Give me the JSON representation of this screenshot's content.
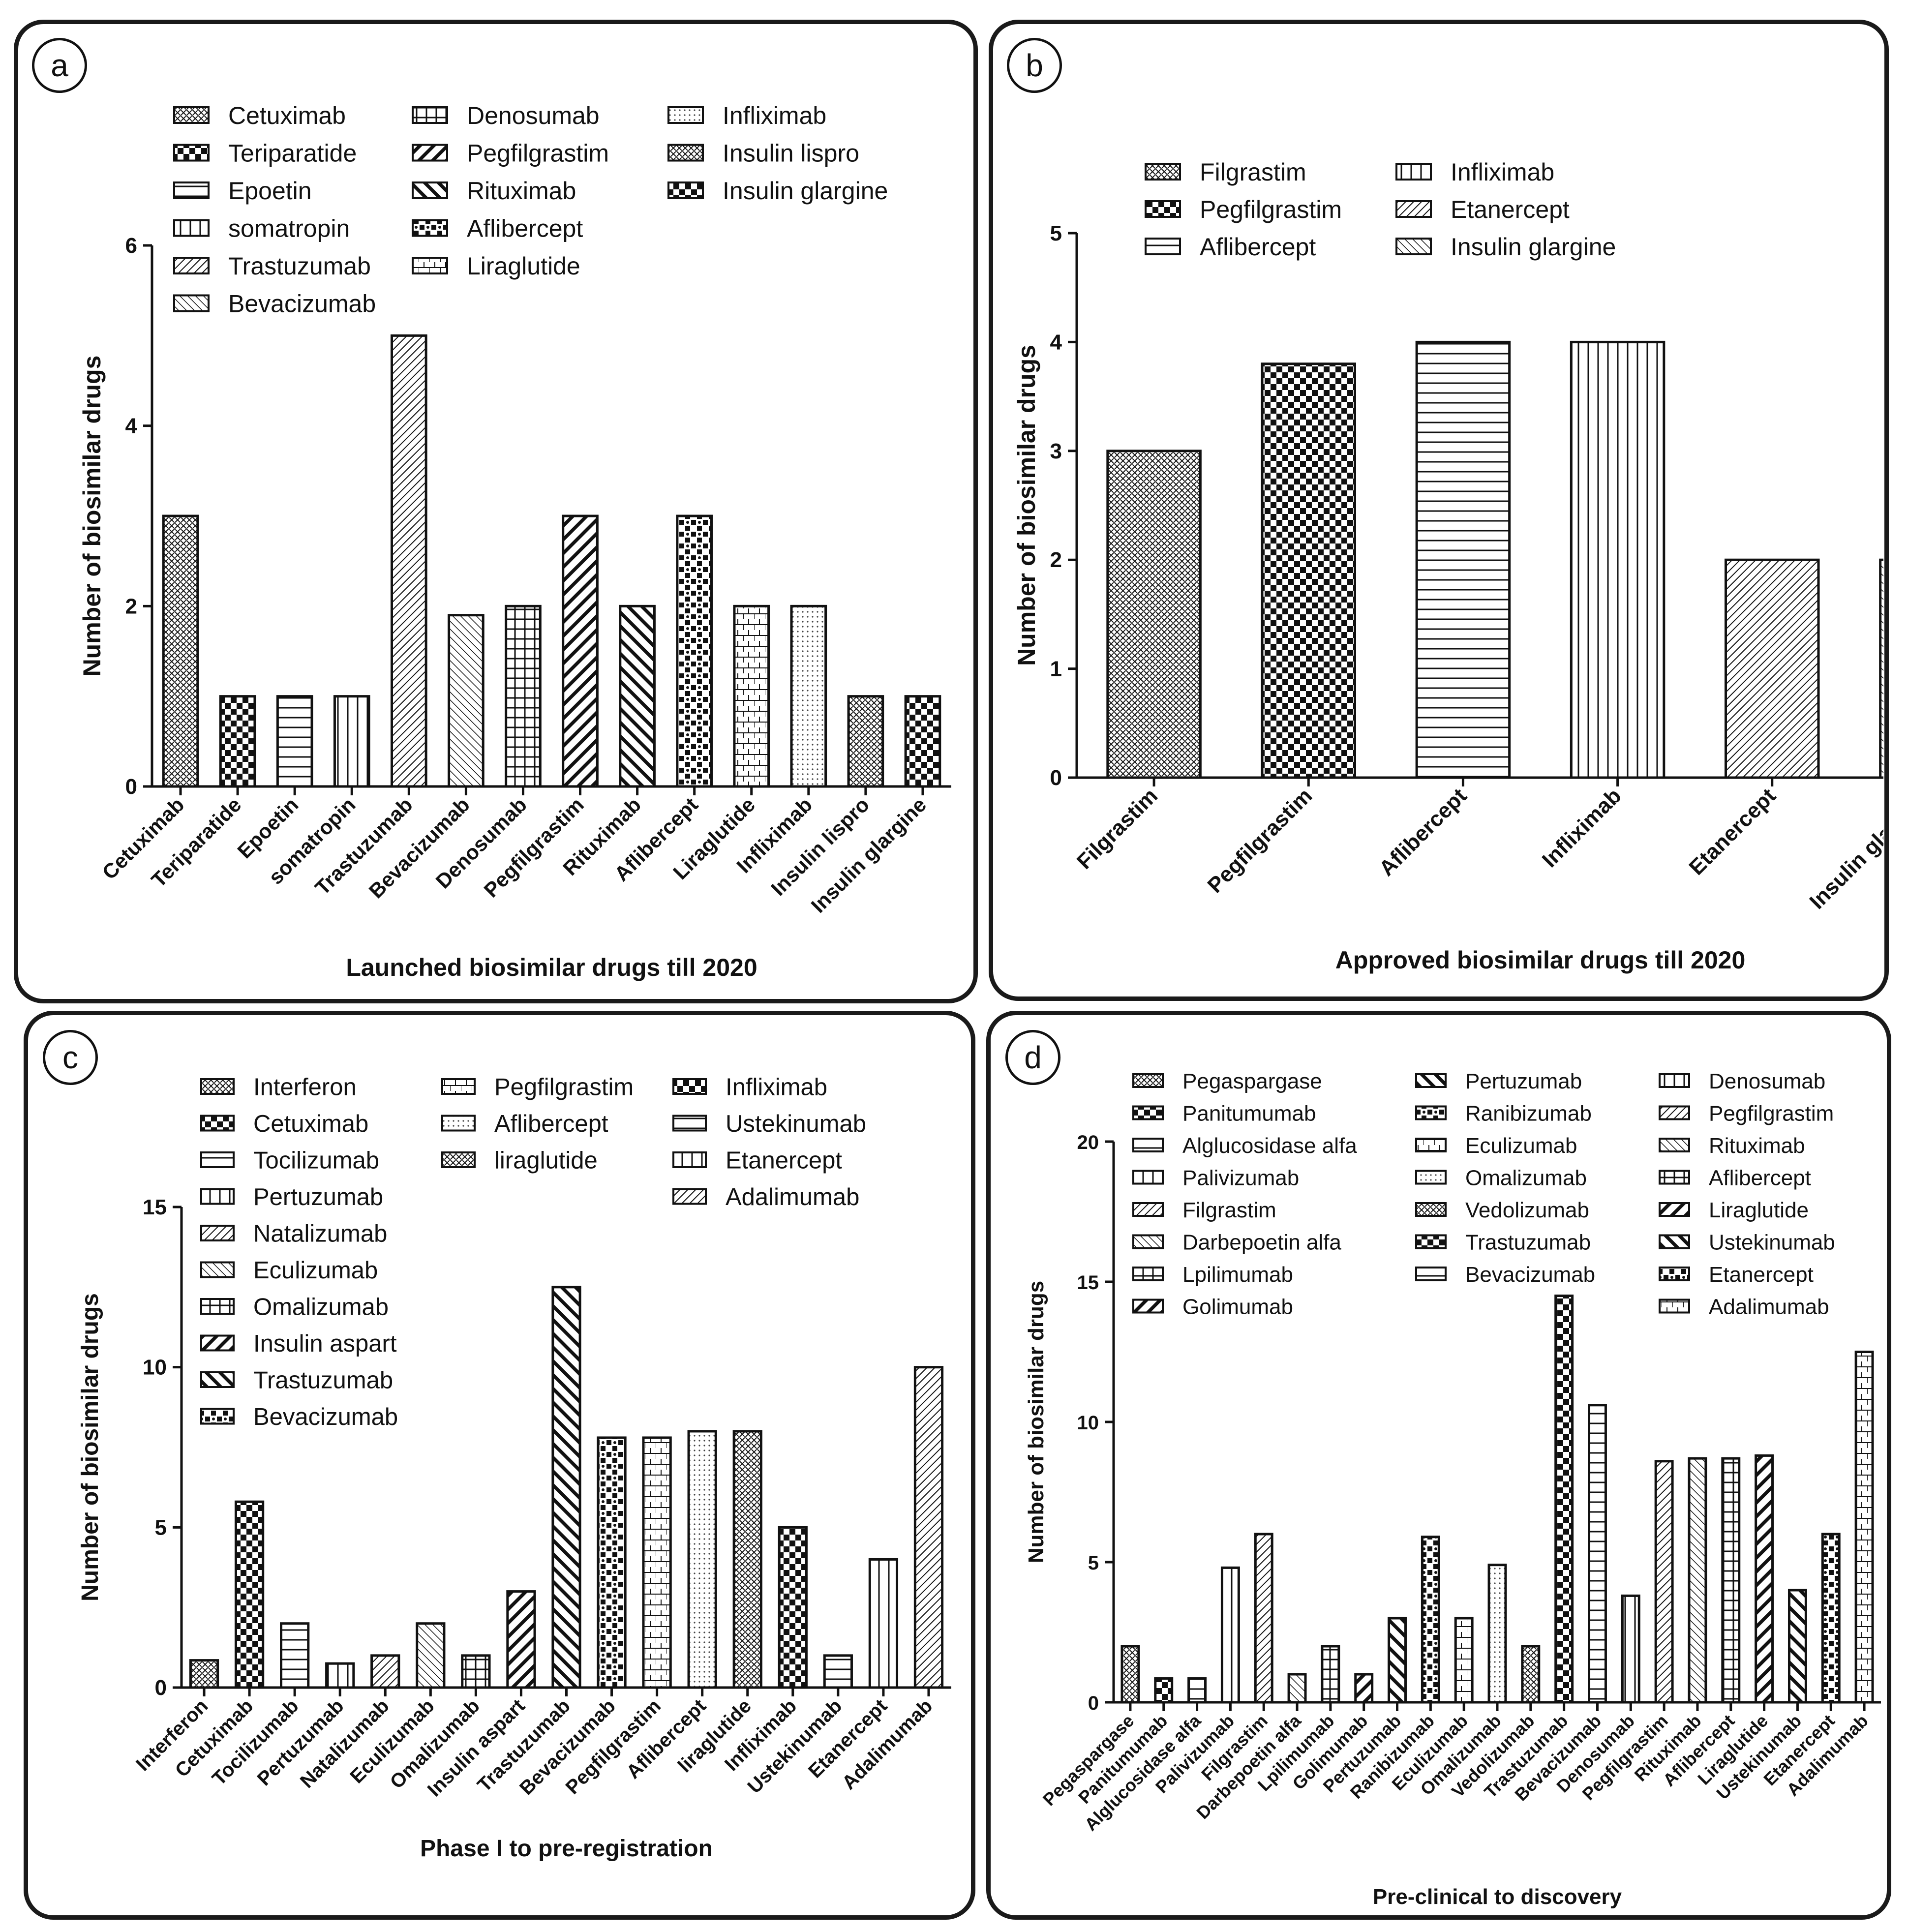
{
  "panels": [
    {
      "label": "a"
    },
    {
      "label": "b"
    },
    {
      "label": "c"
    },
    {
      "label": "d"
    }
  ],
  "colors": {
    "ink": "#111111",
    "border": "#1a1a1a",
    "background": "#ffffff"
  },
  "chart_data": [
    {
      "type": "bar",
      "panel": "a",
      "title": "",
      "xlabel": "Launched biosimilar drugs till 2020",
      "ylabel": "Number of biosimilar drugs",
      "ylim": [
        0,
        6
      ],
      "yticks": [
        0,
        2,
        4,
        6
      ],
      "categories": [
        "Cetuximab",
        "Teriparatide",
        "Epoetin",
        "somatropin",
        "Trastuzumab",
        "Bevacizumab",
        "Denosumab",
        "Pegfilgrastim",
        "Rituximab",
        "Aflibercept",
        "Liraglutide",
        "Infliximab",
        "Insulin lispro",
        "Insulin glargine"
      ],
      "values": [
        3,
        1,
        1,
        1,
        5,
        1.9,
        2,
        3,
        2,
        3,
        2,
        2,
        1,
        1
      ],
      "legend": [
        "Cetuximab",
        "Teriparatide",
        "Epoetin",
        "somatropin",
        "Trastuzumab",
        "Bevacizumab",
        "Denosumab",
        "Pegfilgrastim",
        "Rituximab",
        "Aflibercept",
        "Liraglutide",
        "Infliximab",
        "Insulin lispro",
        "Insulin glargine"
      ],
      "legend_columns": [
        6,
        5,
        3
      ],
      "legend_position": "top-left"
    },
    {
      "type": "bar",
      "panel": "b",
      "title": "",
      "xlabel": "Approved biosimilar drugs till 2020",
      "ylabel": "Number of biosimilar drugs",
      "ylim": [
        0,
        5
      ],
      "yticks": [
        0,
        1,
        2,
        3,
        4,
        5
      ],
      "categories": [
        "Filgrastim",
        "Pegfilgrastim",
        "Aflibercept",
        "Infliximab",
        "Etanercept",
        "Insulin glargine"
      ],
      "values": [
        3,
        3.8,
        4,
        4,
        2,
        2
      ],
      "legend": [
        "Filgrastim",
        "Pegfilgrastim",
        "Aflibercept",
        "Infliximab",
        "Etanercept",
        "Insulin glargine"
      ],
      "legend_columns": [
        3,
        3
      ],
      "legend_position": "top-left"
    },
    {
      "type": "bar",
      "panel": "c",
      "title": "",
      "xlabel": "Phase I to pre-registration",
      "ylabel": "Number of biosimilar drugs",
      "ylim": [
        0,
        15
      ],
      "yticks": [
        0,
        5,
        10,
        15
      ],
      "categories": [
        "Interferon",
        "Cetuximab",
        "Tocilizumab",
        "Pertuzumab",
        "Natalizumab",
        "Eculizumab",
        "Omalizumab",
        "Insulin aspart",
        "Trastuzumab",
        "Bevacizumab",
        "Pegfilgrastim",
        "Aflibercept",
        "liraglutide",
        "Infliximab",
        "Ustekinumab",
        "Etanercept",
        "Adalimumab"
      ],
      "values": [
        0.85,
        5.8,
        2,
        0.75,
        1,
        2,
        1,
        3,
        12.5,
        7.8,
        7.8,
        8,
        8,
        5,
        1,
        4,
        10
      ],
      "legend": [
        "Interferon",
        "Cetuximab",
        "Tocilizumab",
        "Pertuzumab",
        "Natalizumab",
        "Eculizumab",
        "Omalizumab",
        "Insulin aspart",
        "Trastuzumab",
        "Bevacizumab",
        "Pegfilgrastim",
        "Aflibercept",
        "liraglutide",
        "Infliximab",
        "Ustekinumab",
        "Etanercept",
        "Adalimumab"
      ],
      "legend_columns": [
        10,
        3,
        4
      ],
      "legend_position": "top-left"
    },
    {
      "type": "bar",
      "panel": "d",
      "title": "",
      "xlabel": "Pre-clinical to discovery",
      "ylabel": "Number of biosimilar drugs",
      "ylim": [
        0,
        20
      ],
      "yticks": [
        0,
        5,
        10,
        15,
        20
      ],
      "categories": [
        "Pegaspargase",
        "Panitumumab",
        "Alglucosidase alfa",
        "Palivizumab",
        "Filgrastim",
        "Darbepoetin alfa",
        "Lpilimumab",
        "Golimumab",
        "Pertuzumab",
        "Ranibizumab",
        "Eculizumab",
        "Omalizumab",
        "Vedolizumab",
        "Trastuzumab",
        "Bevacizumab",
        "Denosumab",
        "Pegfilgrastim",
        "Rituximab",
        "Aflibercept",
        "Liraglutide",
        "Ustekinumab",
        "Etanercept",
        "Adalimumab"
      ],
      "values": [
        2,
        0.85,
        0.85,
        4.8,
        6,
        1,
        2,
        1,
        3,
        5.9,
        3,
        4.9,
        2,
        14.5,
        10.6,
        3.8,
        8.6,
        8.7,
        8.7,
        8.8,
        4,
        6,
        12.5
      ],
      "legend": [
        "Pegaspargase",
        "Panitumumab",
        "Alglucosidase alfa",
        "Palivizumab",
        "Filgrastim",
        "Darbepoetin alfa",
        "Lpilimumab",
        "Golimumab",
        "Pertuzumab",
        "Ranibizumab",
        "Eculizumab",
        "Omalizumab",
        "Vedolizumab",
        "Trastuzumab",
        "Bevacizumab",
        "Denosumab",
        "Pegfilgrastim",
        "Rituximab",
        "Aflibercept",
        "Liraglutide",
        "Ustekinumab",
        "Etanercept",
        "Adalimumab"
      ],
      "legend_columns": [
        8,
        7,
        8
      ],
      "legend_position": "top-left"
    }
  ]
}
